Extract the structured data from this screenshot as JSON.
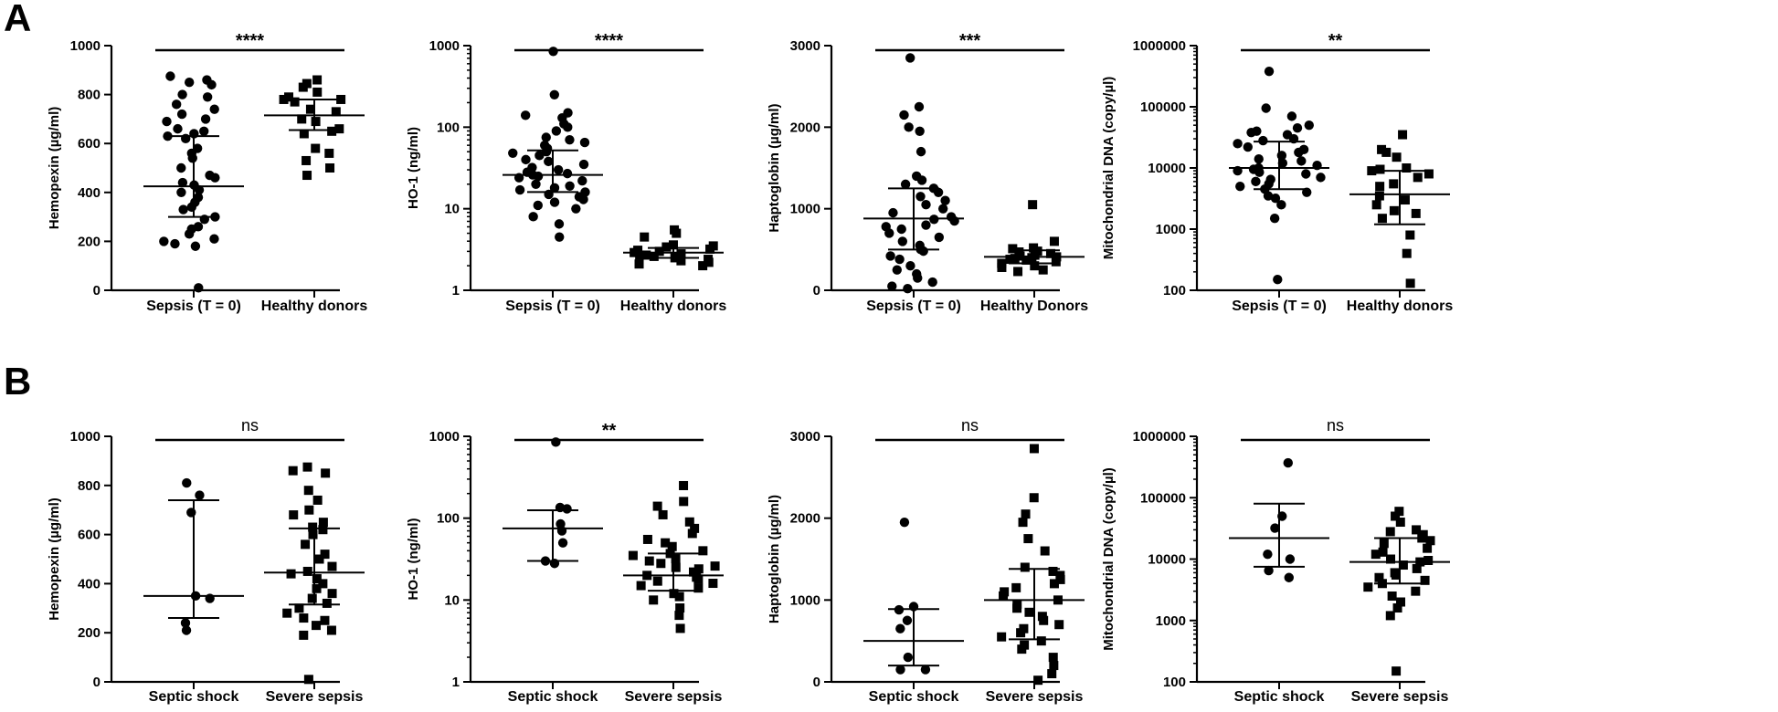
{
  "panels": [
    {
      "letter": "A"
    },
    {
      "letter": "B"
    }
  ],
  "chart_data": [
    {
      "type": "scatter",
      "panel": "A",
      "scale": "linear",
      "ylabel": "Hemopexin (µg/ml)",
      "ylim": [
        0,
        1000
      ],
      "yticks": [
        0,
        200,
        400,
        600,
        800,
        1000
      ],
      "yticklabels": [
        "0",
        "200",
        "400",
        "600",
        "800",
        "1000"
      ],
      "significance": "****",
      "groups": [
        {
          "name": "Sepsis (T = 0)",
          "marker": "circle",
          "median": 425,
          "iqr": [
            300,
            630
          ],
          "values": [
            860,
            875,
            850,
            840,
            800,
            790,
            760,
            740,
            720,
            700,
            690,
            660,
            650,
            640,
            630,
            620,
            580,
            560,
            540,
            500,
            470,
            460,
            440,
            430,
            410,
            400,
            380,
            360,
            340,
            330,
            300,
            290,
            260,
            250,
            230,
            210,
            200,
            190,
            180,
            10
          ]
        },
        {
          "name": "Healthy donors",
          "marker": "square",
          "median": 715,
          "iqr": [
            655,
            780
          ],
          "values": [
            860,
            845,
            830,
            810,
            790,
            780,
            780,
            770,
            740,
            730,
            700,
            690,
            660,
            650,
            640,
            580,
            560,
            530,
            500,
            470
          ]
        }
      ]
    },
    {
      "type": "scatter",
      "panel": "A",
      "scale": "log",
      "ylabel": "HO-1 (ng/ml)",
      "ylim": [
        1,
        1000
      ],
      "yticks": [
        1,
        10,
        100,
        1000
      ],
      "yticklabels": [
        "1",
        "10",
        "100",
        "1000"
      ],
      "significance": "****",
      "groups": [
        {
          "name": "Sepsis (T = 0)",
          "marker": "circle",
          "median": 26,
          "iqr": [
            16,
            52
          ],
          "values": [
            850,
            250,
            150,
            140,
            130,
            110,
            100,
            90,
            75,
            70,
            65,
            60,
            55,
            50,
            48,
            45,
            40,
            38,
            35,
            32,
            30,
            28,
            27,
            26,
            25,
            24,
            22,
            20,
            19,
            18,
            17,
            16,
            15,
            14,
            13,
            12,
            11,
            10,
            8,
            6.5,
            4.5
          ]
        },
        {
          "name": "Healthy donors",
          "marker": "square",
          "median": 2.9,
          "iqr": [
            2.5,
            3.3
          ],
          "values": [
            5.5,
            5,
            4.5,
            3.6,
            3.5,
            3.4,
            3.2,
            3.1,
            3,
            2.9,
            2.8,
            2.7,
            2.7,
            2.6,
            2.5,
            2.4,
            2.3,
            2.2,
            2.1,
            2
          ]
        }
      ]
    },
    {
      "type": "scatter",
      "panel": "A",
      "scale": "linear",
      "ylabel": "Haptoglobin (µg/ml)",
      "ylim": [
        0,
        3000
      ],
      "yticks": [
        0,
        1000,
        2000,
        3000
      ],
      "yticklabels": [
        "0",
        "1000",
        "2000",
        "3000"
      ],
      "significance": "***",
      "groups": [
        {
          "name": "Sepsis (T = 0)",
          "marker": "circle",
          "median": 880,
          "iqr": [
            500,
            1250
          ],
          "values": [
            2850,
            2250,
            2150,
            2000,
            1950,
            1700,
            1400,
            1350,
            1300,
            1250,
            1200,
            1150,
            1100,
            1050,
            1000,
            950,
            900,
            870,
            850,
            800,
            780,
            750,
            700,
            650,
            600,
            550,
            500,
            480,
            420,
            380,
            300,
            250,
            200,
            150,
            100,
            50,
            20
          ]
        },
        {
          "name": "Healthy Donors",
          "marker": "square",
          "median": 410,
          "iqr": [
            330,
            490
          ],
          "values": [
            1050,
            600,
            520,
            510,
            480,
            470,
            450,
            430,
            420,
            410,
            400,
            390,
            380,
            370,
            350,
            330,
            300,
            280,
            250,
            230
          ]
        }
      ]
    },
    {
      "type": "scatter",
      "panel": "A",
      "scale": "log",
      "ylabel": "Mitochondrial DNA (copy/µl)",
      "ylim": [
        100,
        1000000
      ],
      "yticks": [
        100,
        1000,
        10000,
        100000,
        1000000
      ],
      "yticklabels": [
        "100",
        "1000",
        "10000",
        "100000",
        "1000000"
      ],
      "significance": "**",
      "groups": [
        {
          "name": "Sepsis (T = 0)",
          "marker": "circle",
          "median": 10000,
          "iqr": [
            4500,
            27000
          ],
          "values": [
            380000,
            95000,
            70000,
            50000,
            45000,
            40000,
            38000,
            35000,
            30000,
            28000,
            25000,
            22000,
            20000,
            18000,
            16000,
            14000,
            13000,
            12000,
            11000,
            10000,
            9500,
            9000,
            8500,
            8000,
            7000,
            6500,
            6000,
            5500,
            5000,
            4500,
            4000,
            3500,
            3200,
            2500,
            1500,
            150
          ]
        },
        {
          "name": "Healthy donors",
          "marker": "square",
          "median": 3700,
          "iqr": [
            1200,
            9000
          ],
          "values": [
            35000,
            20000,
            18000,
            15000,
            10000,
            9500,
            9000,
            8000,
            7000,
            5500,
            5000,
            3500,
            3000,
            2500,
            2000,
            1800,
            1500,
            800,
            400,
            130
          ]
        }
      ]
    },
    {
      "type": "scatter",
      "panel": "B",
      "scale": "linear",
      "ylabel": "Hemopexin (µg/ml)",
      "ylim": [
        0,
        1000
      ],
      "yticks": [
        0,
        200,
        400,
        600,
        800,
        1000
      ],
      "yticklabels": [
        "0",
        "200",
        "400",
        "600",
        "800",
        "1000"
      ],
      "significance": "ns",
      "groups": [
        {
          "name": "Septic shock",
          "marker": "circle",
          "median": 350,
          "iqr": [
            260,
            740
          ],
          "values": [
            810,
            760,
            690,
            350,
            340,
            240,
            210
          ]
        },
        {
          "name": "Severe sepsis",
          "marker": "square",
          "median": 445,
          "iqr": [
            315,
            625
          ],
          "values": [
            875,
            860,
            850,
            780,
            740,
            700,
            680,
            650,
            630,
            620,
            600,
            560,
            520,
            500,
            470,
            450,
            440,
            420,
            400,
            380,
            360,
            340,
            320,
            300,
            280,
            260,
            250,
            230,
            210,
            190,
            10
          ]
        }
      ]
    },
    {
      "type": "scatter",
      "panel": "B",
      "scale": "log",
      "ylabel": "HO-1 (ng/ml)",
      "ylim": [
        1,
        1000
      ],
      "yticks": [
        1,
        10,
        100,
        1000
      ],
      "yticklabels": [
        "1",
        "10",
        "100",
        "1000"
      ],
      "significance": "**",
      "groups": [
        {
          "name": "Septic shock",
          "marker": "circle",
          "median": 75,
          "iqr": [
            30,
            125
          ],
          "values": [
            850,
            135,
            130,
            85,
            70,
            50,
            30,
            28
          ]
        },
        {
          "name": "Severe sepsis",
          "marker": "square",
          "median": 20,
          "iqr": [
            13,
            37
          ],
          "values": [
            250,
            160,
            140,
            110,
            90,
            75,
            65,
            55,
            50,
            45,
            40,
            37,
            35,
            32,
            30,
            28,
            26,
            25,
            24,
            22,
            20,
            19,
            18,
            17,
            16,
            15,
            14,
            12,
            11,
            10,
            8,
            6.5,
            4.5
          ]
        }
      ]
    },
    {
      "type": "scatter",
      "panel": "B",
      "scale": "linear",
      "ylabel": "Haptoglobin (µg/ml)",
      "ylim": [
        0,
        3000
      ],
      "yticks": [
        0,
        1000,
        2000,
        3000
      ],
      "yticklabels": [
        "0",
        "1000",
        "2000",
        "3000"
      ],
      "significance": "ns",
      "groups": [
        {
          "name": "Septic shock",
          "marker": "circle",
          "median": 500,
          "iqr": [
            200,
            890
          ],
          "values": [
            1950,
            920,
            880,
            750,
            650,
            300,
            150,
            150
          ]
        },
        {
          "name": "Severe sepsis",
          "marker": "square",
          "median": 1000,
          "iqr": [
            520,
            1380
          ],
          "values": [
            2850,
            2250,
            2050,
            1950,
            1750,
            1600,
            1400,
            1350,
            1300,
            1250,
            1200,
            1150,
            1100,
            1050,
            1000,
            950,
            900,
            850,
            800,
            750,
            700,
            650,
            600,
            550,
            500,
            450,
            400,
            300,
            200,
            100,
            20
          ]
        }
      ]
    },
    {
      "type": "scatter",
      "panel": "B",
      "scale": "log",
      "ylabel": "Mitochondrial DNA (copy/µl)",
      "ylim": [
        100,
        1000000
      ],
      "yticks": [
        100,
        1000,
        10000,
        100000,
        1000000
      ],
      "yticklabels": [
        "100",
        "1000",
        "10000",
        "100000",
        "1000000"
      ],
      "significance": "ns",
      "groups": [
        {
          "name": "Septic shock",
          "marker": "circle",
          "median": 22000,
          "iqr": [
            7500,
            80000
          ],
          "values": [
            370000,
            50000,
            32000,
            12000,
            10000,
            6500,
            5000
          ]
        },
        {
          "name": "Severe sepsis",
          "marker": "square",
          "median": 9000,
          "iqr": [
            4000,
            22000
          ],
          "values": [
            60000,
            50000,
            40000,
            30000,
            28000,
            25000,
            22000,
            20000,
            18000,
            15000,
            13000,
            12000,
            10000,
            9500,
            9000,
            8000,
            7000,
            6000,
            5500,
            5000,
            4500,
            4000,
            3500,
            3000,
            2500,
            2000,
            1600,
            1200,
            150
          ]
        }
      ]
    }
  ]
}
